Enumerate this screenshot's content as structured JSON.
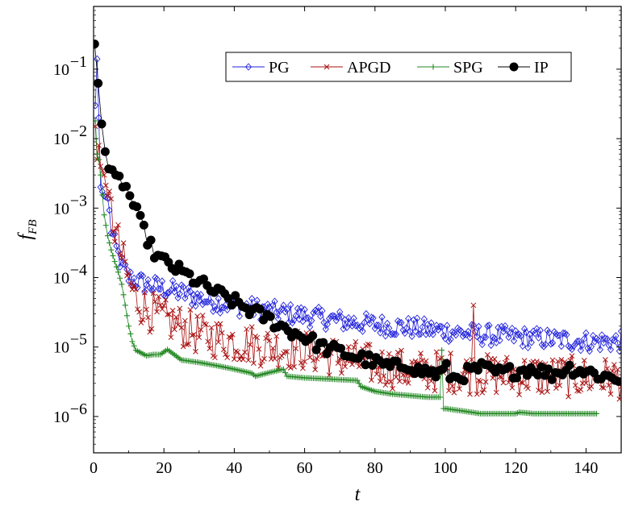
{
  "chart_data": {
    "type": "line",
    "title": "",
    "xlabel": "t",
    "ylabel_main": "f",
    "ylabel_sub": "FB",
    "xlim": [
      0,
      150
    ],
    "ylim": [
      3e-07,
      0.8
    ],
    "yscale": "log",
    "grid": false,
    "legend_position": "top-right",
    "x_ticks": [
      0,
      20,
      40,
      60,
      80,
      100,
      120,
      140
    ],
    "y_ticks": [
      {
        "value": 1e-06,
        "label": "10",
        "exp": "−6"
      },
      {
        "value": 1e-05,
        "label": "10",
        "exp": "−5"
      },
      {
        "value": 0.0001,
        "label": "10",
        "exp": "−4"
      },
      {
        "value": 0.001,
        "label": "10",
        "exp": "−3"
      },
      {
        "value": 0.01,
        "label": "10",
        "exp": "−2"
      },
      {
        "value": 0.1,
        "label": "10",
        "exp": "−1"
      }
    ],
    "series": [
      {
        "name": "PG",
        "color": "#2222dd",
        "marker": "diamond",
        "x": [
          0.5,
          1,
          1.5,
          2,
          3,
          4,
          5,
          6,
          8,
          10,
          12,
          15,
          20,
          25,
          30,
          40,
          50,
          60,
          70,
          80,
          90,
          100,
          110,
          120,
          130,
          140,
          150
        ],
        "y": [
          0.03,
          0.14,
          0.02,
          0.002,
          0.0015,
          0.0014,
          0.0005,
          0.0003,
          0.00015,
          0.0001,
          9e-05,
          8e-05,
          7e-05,
          6e-05,
          5e-05,
          4e-05,
          3.3e-05,
          2.8e-05,
          2.4e-05,
          2.1e-05,
          1.9e-05,
          1.7e-05,
          1.5e-05,
          1.4e-05,
          1.3e-05,
          1.2e-05,
          1.2e-05
        ],
        "noise": 0.15
      },
      {
        "name": "APGD",
        "color": "#aa1111",
        "marker": "cross",
        "x": [
          0.5,
          1,
          1.5,
          2,
          3,
          4,
          5,
          6,
          8,
          10,
          12,
          15,
          20,
          25,
          30,
          40,
          50,
          60,
          70,
          80,
          90,
          100,
          110,
          120,
          130,
          140,
          150
        ],
        "y": [
          0.015,
          0.005,
          0.008,
          0.004,
          0.003,
          0.0015,
          0.0009,
          0.0005,
          0.0002,
          9e-05,
          5e-05,
          3.5e-05,
          2.5e-05,
          2e-05,
          1.5e-05,
          1.2e-05,
          1e-05,
          9e-06,
          7e-06,
          5.5e-06,
          4.5e-06,
          4.5e-06,
          4e-06,
          4e-06,
          3.8e-06,
          3.7e-06,
          3.5e-06
        ],
        "noise": 0.3
      },
      {
        "name": "SPG",
        "color": "#228822",
        "marker": "plus",
        "x": [
          0.5,
          1,
          1.5,
          2,
          3,
          4,
          5,
          6,
          7,
          8,
          9,
          10,
          11,
          12,
          13,
          15,
          17,
          19,
          20,
          21,
          25,
          30,
          35,
          40,
          45,
          46,
          50,
          54,
          55,
          60,
          65,
          70,
          75,
          76,
          80,
          85,
          90,
          95,
          98.5,
          99,
          100,
          105,
          110,
          120,
          121,
          125,
          130,
          135,
          140,
          143
        ],
        "y": [
          0.018,
          0.006,
          0.005,
          0.003,
          0.0008,
          0.0004,
          0.00025,
          0.00017,
          0.00012,
          8e-05,
          4e-05,
          2e-05,
          1.2e-05,
          9e-06,
          8.5e-06,
          7.5e-06,
          7.8e-06,
          7.8e-06,
          8.5e-06,
          9.2e-06,
          6.5e-06,
          6e-06,
          5.4e-06,
          4.8e-06,
          4.2e-06,
          3.8e-06,
          4.3e-06,
          4.8e-06,
          3.8e-06,
          3.6e-06,
          3.5e-06,
          3.4e-06,
          3.3e-06,
          2.7e-06,
          2.3e-06,
          2.1e-06,
          2e-06,
          1.9e-06,
          1.9e-06,
          1.3e-06,
          1.3e-06,
          1.2e-06,
          1.1e-06,
          1.1e-06,
          1.15e-06,
          1.1e-06,
          1.1e-06,
          1.1e-06,
          1.1e-06,
          1.1e-06
        ],
        "noise": 0
      },
      {
        "name": "IP",
        "color": "#000000",
        "marker": "circle",
        "x": [
          0.3,
          0.8,
          1.2,
          1.6,
          2.2,
          3,
          4,
          5,
          6,
          7,
          8,
          9,
          10,
          11,
          12,
          13,
          14,
          15,
          16,
          17,
          18,
          20,
          25,
          30,
          35,
          40,
          45,
          50,
          55,
          60,
          65,
          70,
          75,
          80,
          85,
          88,
          90,
          92,
          95,
          98,
          100,
          102,
          105,
          110,
          115,
          120,
          125,
          130,
          135,
          140,
          145,
          150
        ],
        "y": [
          0.23,
          0.18,
          0.08,
          0.03,
          0.018,
          0.008,
          0.004,
          0.003,
          0.0025,
          0.0025,
          0.0025,
          0.002,
          0.0017,
          0.0012,
          0.0009,
          0.0007,
          0.0005,
          0.0004,
          0.0003,
          0.00024,
          0.0002,
          0.00017,
          0.00012,
          8.5e-05,
          6e-05,
          4.5e-05,
          3.3e-05,
          2.5e-05,
          1.8e-05,
          1.4e-05,
          1e-05,
          8.5e-06,
          7.2e-06,
          6e-06,
          5e-06,
          5.5e-06,
          5.8e-06,
          4.5e-06,
          4.5e-06,
          4e-06,
          5e-06,
          3.5e-06,
          4e-06,
          5e-06,
          4.2e-06,
          4.5e-06,
          5e-06,
          4e-06,
          5e-06,
          4.5e-06,
          3.8e-06,
          3.5e-06
        ],
        "noise": 0.1
      }
    ]
  }
}
